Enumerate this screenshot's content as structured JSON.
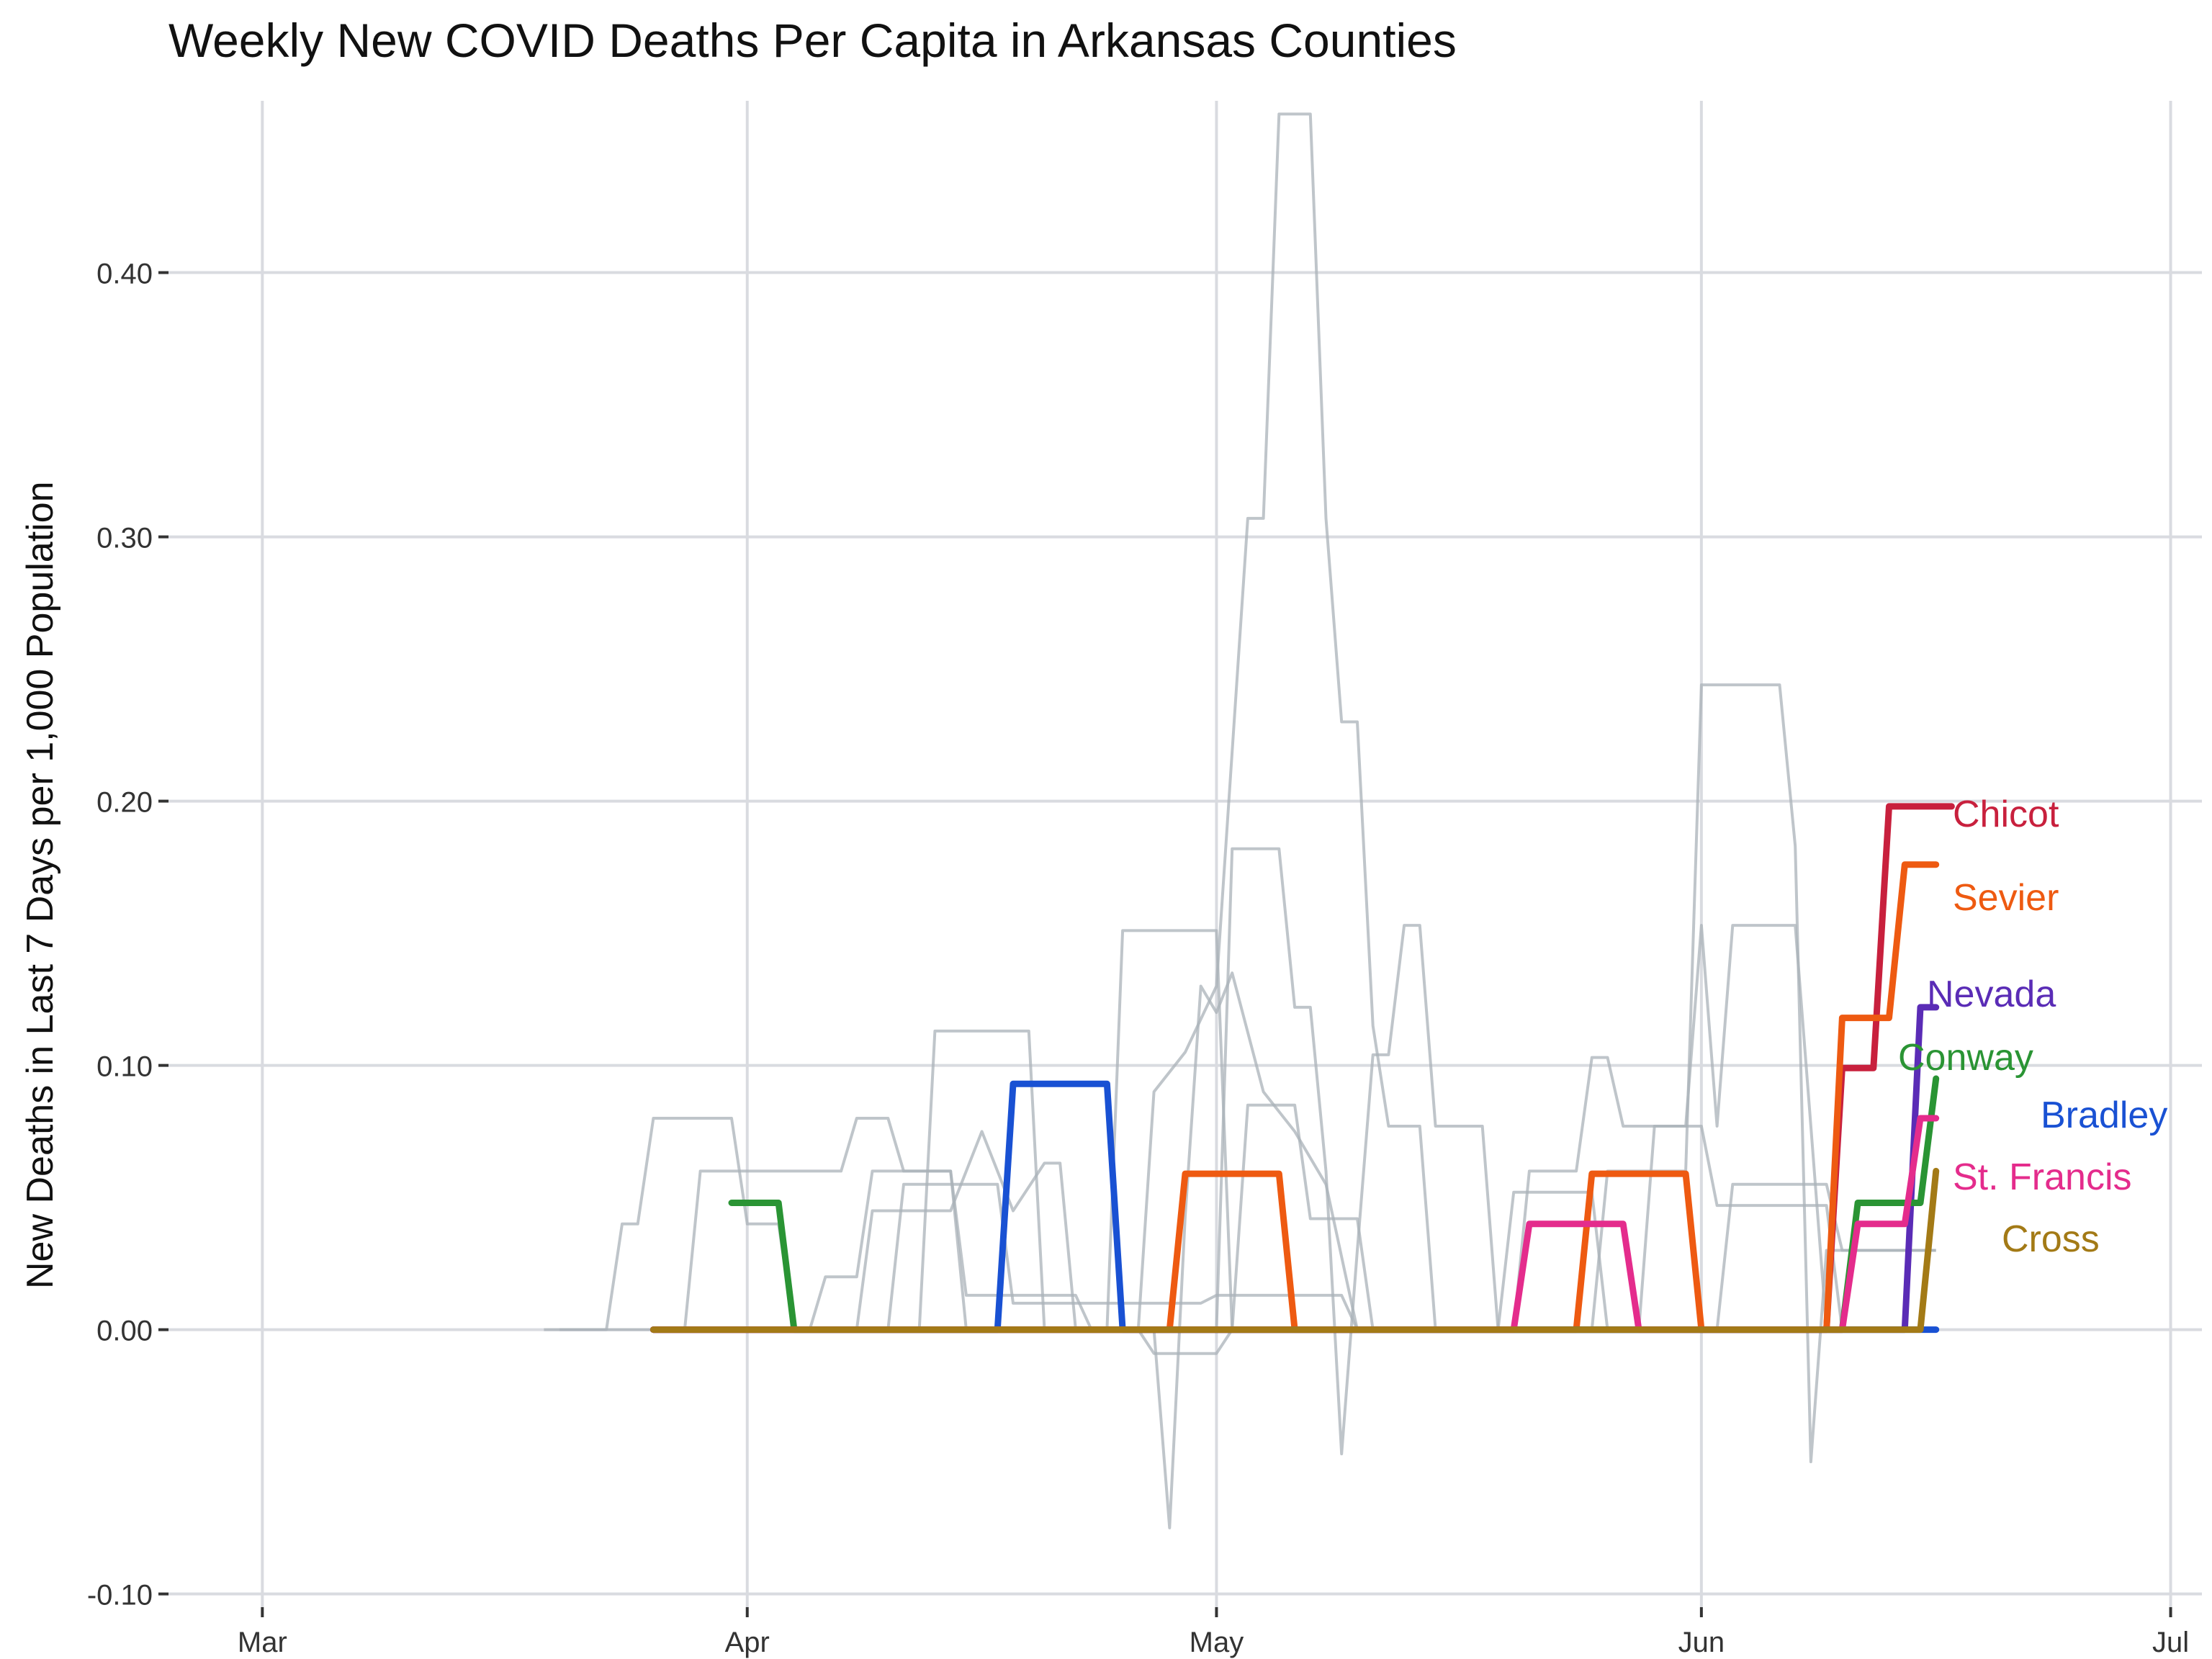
{
  "chart_data": {
    "type": "line",
    "title": "Weekly New COVID Deaths Per Capita in Arkansas Counties",
    "xlabel": "",
    "ylabel": "New Deaths in Last 7 Days per 1,000 Population",
    "x_ticks": [
      "Mar",
      "Apr",
      "May",
      "Jun",
      "Jul"
    ],
    "x_tick_dates": [
      "2020-03-01",
      "2020-04-01",
      "2020-05-01",
      "2020-06-01",
      "2020-07-01"
    ],
    "xlim": [
      "2020-02-24",
      "2020-07-03"
    ],
    "y_ticks": [
      "-0.10",
      "0.00",
      "0.10",
      "0.20",
      "0.30",
      "0.40"
    ],
    "y_tick_values": [
      -0.1,
      0.0,
      0.1,
      0.2,
      0.3,
      0.4
    ],
    "ylim": [
      -0.105,
      0.465
    ],
    "grid": true,
    "highlight_series": [
      {
        "name": "Chicot",
        "color": "#C8203D",
        "points": [
          [
            "2020-03-26",
            0
          ],
          [
            "2020-06-09",
            0
          ],
          [
            "2020-06-10",
            0.099
          ],
          [
            "2020-06-12",
            0.099
          ],
          [
            "2020-06-13",
            0.198
          ],
          [
            "2020-06-17",
            0.198
          ]
        ]
      },
      {
        "name": "Sevier",
        "color": "#EE5A11",
        "points": [
          [
            "2020-03-26",
            0
          ],
          [
            "2020-04-28",
            0
          ],
          [
            "2020-04-29",
            0.059
          ],
          [
            "2020-05-05",
            0.059
          ],
          [
            "2020-05-06",
            0
          ],
          [
            "2020-05-24",
            0
          ],
          [
            "2020-05-25",
            0.059
          ],
          [
            "2020-05-31",
            0.059
          ],
          [
            "2020-06-01",
            0
          ],
          [
            "2020-06-09",
            0
          ],
          [
            "2020-06-10",
            0.118
          ],
          [
            "2020-06-13",
            0.118
          ],
          [
            "2020-06-14",
            0.176
          ],
          [
            "2020-06-16",
            0.176
          ]
        ]
      },
      {
        "name": "Nevada",
        "color": "#5A2CB6",
        "points": [
          [
            "2020-03-26",
            0
          ],
          [
            "2020-06-14",
            0
          ],
          [
            "2020-06-15",
            0.122
          ],
          [
            "2020-06-16",
            0.122
          ]
        ]
      },
      {
        "name": "Conway",
        "color": "#2A9434",
        "points": [
          [
            "2020-03-31",
            0.048
          ],
          [
            "2020-04-03",
            0.048
          ],
          [
            "2020-04-04",
            0
          ],
          [
            "2020-06-10",
            0
          ],
          [
            "2020-06-11",
            0.048
          ],
          [
            "2020-06-15",
            0.048
          ],
          [
            "2020-06-16",
            0.095
          ]
        ]
      },
      {
        "name": "Bradley",
        "color": "#1951D3",
        "points": [
          [
            "2020-03-26",
            0
          ],
          [
            "2020-04-17",
            0
          ],
          [
            "2020-04-18",
            0.093
          ],
          [
            "2020-04-24",
            0.093
          ],
          [
            "2020-04-25",
            0
          ],
          [
            "2020-06-16",
            0
          ]
        ]
      },
      {
        "name": "St. Francis",
        "color": "#E42C8C",
        "points": [
          [
            "2020-03-26",
            0
          ],
          [
            "2020-05-20",
            0
          ],
          [
            "2020-05-21",
            0.04
          ],
          [
            "2020-05-27",
            0.04
          ],
          [
            "2020-05-28",
            0
          ],
          [
            "2020-06-10",
            0
          ],
          [
            "2020-06-11",
            0.04
          ],
          [
            "2020-06-14",
            0.04
          ],
          [
            "2020-06-15",
            0.08
          ],
          [
            "2020-06-16",
            0.08
          ]
        ]
      },
      {
        "name": "Cross",
        "color": "#A37A16",
        "points": [
          [
            "2020-03-26",
            0
          ],
          [
            "2020-06-15",
            0
          ],
          [
            "2020-06-16",
            0.06
          ]
        ]
      }
    ],
    "background_series": [
      {
        "points": [
          [
            "2020-03-19",
            0
          ],
          [
            "2020-03-23",
            0
          ],
          [
            "2020-03-24",
            0.04
          ],
          [
            "2020-03-25",
            0.04
          ],
          [
            "2020-03-26",
            0.08
          ],
          [
            "2020-03-31",
            0.08
          ],
          [
            "2020-04-01",
            0.04
          ],
          [
            "2020-04-03",
            0.04
          ],
          [
            "2020-04-04",
            0
          ],
          [
            "2020-06-16",
            0
          ]
        ]
      },
      {
        "points": [
          [
            "2020-03-20",
            0
          ],
          [
            "2020-03-28",
            0
          ],
          [
            "2020-03-29",
            0.06
          ],
          [
            "2020-04-07",
            0.06
          ],
          [
            "2020-04-08",
            0.08
          ],
          [
            "2020-04-10",
            0.08
          ],
          [
            "2020-04-11",
            0.06
          ],
          [
            "2020-04-14",
            0.06
          ],
          [
            "2020-04-15",
            0
          ],
          [
            "2020-06-16",
            0
          ]
        ]
      },
      {
        "points": [
          [
            "2020-03-26",
            0
          ],
          [
            "2020-04-12",
            0
          ],
          [
            "2020-04-13",
            0.113
          ],
          [
            "2020-04-19",
            0.113
          ],
          [
            "2020-04-20",
            0
          ],
          [
            "2020-04-24",
            0
          ],
          [
            "2020-04-25",
            0.151
          ],
          [
            "2020-05-01",
            0.151
          ],
          [
            "2020-05-02",
            0
          ],
          [
            "2020-06-16",
            0
          ]
        ]
      },
      {
        "points": [
          [
            "2020-03-26",
            0
          ],
          [
            "2020-04-26",
            0
          ],
          [
            "2020-04-27",
            0.09
          ],
          [
            "2020-04-29",
            0.105
          ],
          [
            "2020-05-01",
            0.13
          ],
          [
            "2020-05-03",
            0.307
          ],
          [
            "2020-05-04",
            0.307
          ],
          [
            "2020-05-05",
            0.46
          ],
          [
            "2020-05-07",
            0.46
          ],
          [
            "2020-05-08",
            0.307
          ],
          [
            "2020-05-09",
            0.23
          ],
          [
            "2020-05-10",
            0.23
          ],
          [
            "2020-05-11",
            0.115
          ],
          [
            "2020-05-12",
            0.077
          ],
          [
            "2020-05-14",
            0.077
          ],
          [
            "2020-05-15",
            0
          ],
          [
            "2020-06-16",
            0
          ]
        ]
      },
      {
        "points": [
          [
            "2020-03-26",
            0
          ],
          [
            "2020-05-01",
            0
          ],
          [
            "2020-05-02",
            0.182
          ],
          [
            "2020-05-05",
            0.182
          ],
          [
            "2020-05-06",
            0.122
          ],
          [
            "2020-05-07",
            0.122
          ],
          [
            "2020-05-08",
            0.06
          ],
          [
            "2020-05-09",
            -0.047
          ],
          [
            "2020-05-10",
            0.03
          ],
          [
            "2020-05-11",
            0.104
          ],
          [
            "2020-05-12",
            0.104
          ],
          [
            "2020-05-13",
            0.153
          ],
          [
            "2020-05-14",
            0.153
          ],
          [
            "2020-05-15",
            0.077
          ],
          [
            "2020-05-18",
            0.077
          ],
          [
            "2020-05-19",
            0
          ],
          [
            "2020-06-16",
            0
          ]
        ]
      },
      {
        "points": [
          [
            "2020-03-26",
            0
          ],
          [
            "2020-05-25",
            0
          ],
          [
            "2020-05-26",
            0.06
          ],
          [
            "2020-05-31",
            0.06
          ],
          [
            "2020-06-01",
            0.244
          ],
          [
            "2020-06-06",
            0.244
          ],
          [
            "2020-06-07",
            0.183
          ],
          [
            "2020-06-08",
            -0.05
          ],
          [
            "2020-06-09",
            0.03
          ],
          [
            "2020-06-16",
            0.03
          ]
        ]
      },
      {
        "points": [
          [
            "2020-03-26",
            0
          ],
          [
            "2020-05-28",
            0
          ],
          [
            "2020-05-29",
            0.077
          ],
          [
            "2020-05-31",
            0.077
          ],
          [
            "2020-06-01",
            0.153
          ],
          [
            "2020-06-02",
            0.077
          ],
          [
            "2020-06-03",
            0.153
          ],
          [
            "2020-06-07",
            0.153
          ],
          [
            "2020-06-08",
            0.077
          ],
          [
            "2020-06-09",
            0
          ],
          [
            "2020-06-16",
            0
          ]
        ]
      },
      {
        "points": [
          [
            "2020-03-26",
            0
          ],
          [
            "2020-04-27",
            0
          ],
          [
            "2020-04-28",
            -0.075
          ],
          [
            "2020-04-29",
            0.043
          ],
          [
            "2020-04-30",
            0.13
          ],
          [
            "2020-05-01",
            0.12
          ],
          [
            "2020-05-02",
            0.135
          ],
          [
            "2020-05-04",
            0.09
          ],
          [
            "2020-05-06",
            0.075
          ],
          [
            "2020-05-08",
            0.055
          ],
          [
            "2020-05-10",
            0
          ],
          [
            "2020-06-16",
            0
          ]
        ]
      },
      {
        "points": [
          [
            "2020-03-26",
            0
          ],
          [
            "2020-05-20",
            0
          ],
          [
            "2020-05-21",
            0.06
          ],
          [
            "2020-05-24",
            0.06
          ],
          [
            "2020-05-25",
            0.103
          ],
          [
            "2020-05-26",
            0.103
          ],
          [
            "2020-05-27",
            0.077
          ],
          [
            "2020-06-01",
            0.077
          ],
          [
            "2020-06-02",
            0.047
          ],
          [
            "2020-06-09",
            0.047
          ],
          [
            "2020-06-10",
            0
          ],
          [
            "2020-06-16",
            0
          ]
        ]
      },
      {
        "points": [
          [
            "2020-03-26",
            0
          ],
          [
            "2020-04-26",
            0
          ],
          [
            "2020-04-27",
            -0.009
          ],
          [
            "2020-05-01",
            -0.009
          ],
          [
            "2020-05-02",
            0
          ],
          [
            "2020-05-03",
            0.085
          ],
          [
            "2020-05-06",
            0.085
          ],
          [
            "2020-05-07",
            0.042
          ],
          [
            "2020-05-10",
            0.042
          ],
          [
            "2020-05-11",
            0
          ],
          [
            "2020-06-16",
            0
          ]
        ]
      },
      {
        "points": [
          [
            "2020-03-26",
            0
          ],
          [
            "2020-04-05",
            0
          ],
          [
            "2020-04-06",
            0.02
          ],
          [
            "2020-04-08",
            0.02
          ],
          [
            "2020-04-09",
            0.06
          ],
          [
            "2020-04-14",
            0.06
          ],
          [
            "2020-04-15",
            0.013
          ],
          [
            "2020-04-22",
            0.013
          ],
          [
            "2020-04-23",
            0
          ],
          [
            "2020-06-16",
            0
          ]
        ]
      },
      {
        "points": [
          [
            "2020-03-26",
            0
          ],
          [
            "2020-04-08",
            0
          ],
          [
            "2020-04-09",
            0.045
          ],
          [
            "2020-04-14",
            0.045
          ],
          [
            "2020-04-16",
            0.075
          ],
          [
            "2020-04-18",
            0.045
          ],
          [
            "2020-04-20",
            0.063
          ],
          [
            "2020-04-21",
            0.063
          ],
          [
            "2020-04-22",
            0
          ],
          [
            "2020-06-16",
            0
          ]
        ]
      },
      {
        "points": [
          [
            "2020-03-26",
            0
          ],
          [
            "2020-05-19",
            0
          ],
          [
            "2020-05-20",
            0.052
          ],
          [
            "2020-05-25",
            0.052
          ],
          [
            "2020-05-26",
            0
          ],
          [
            "2020-06-02",
            0
          ],
          [
            "2020-06-03",
            0.055
          ],
          [
            "2020-06-09",
            0.055
          ],
          [
            "2020-06-10",
            0.03
          ],
          [
            "2020-06-16",
            0.03
          ]
        ]
      },
      {
        "points": [
          [
            "2020-03-26",
            0
          ],
          [
            "2020-04-10",
            0
          ],
          [
            "2020-04-11",
            0.055
          ],
          [
            "2020-04-17",
            0.055
          ],
          [
            "2020-04-18",
            0.01
          ],
          [
            "2020-04-30",
            0.01
          ],
          [
            "2020-05-01",
            0.013
          ],
          [
            "2020-05-09",
            0.013
          ],
          [
            "2020-05-10",
            0
          ],
          [
            "2020-06-16",
            0
          ]
        ]
      }
    ],
    "labels": [
      {
        "text": "Chicot",
        "color": "#C8203D"
      },
      {
        "text": "Sevier",
        "color": "#EE5A11"
      },
      {
        "text": "Nevada",
        "color": "#5A2CB6"
      },
      {
        "text": "Conway",
        "color": "#2A9434"
      },
      {
        "text": "Bradley",
        "color": "#1951D3"
      },
      {
        "text": "St. Francis",
        "color": "#E42C8C"
      },
      {
        "text": "Cross",
        "color": "#A37A16"
      }
    ],
    "colors": {
      "background_lines": "#A9B2B8",
      "grid": "#D9DBE0",
      "text": "#333333"
    }
  }
}
